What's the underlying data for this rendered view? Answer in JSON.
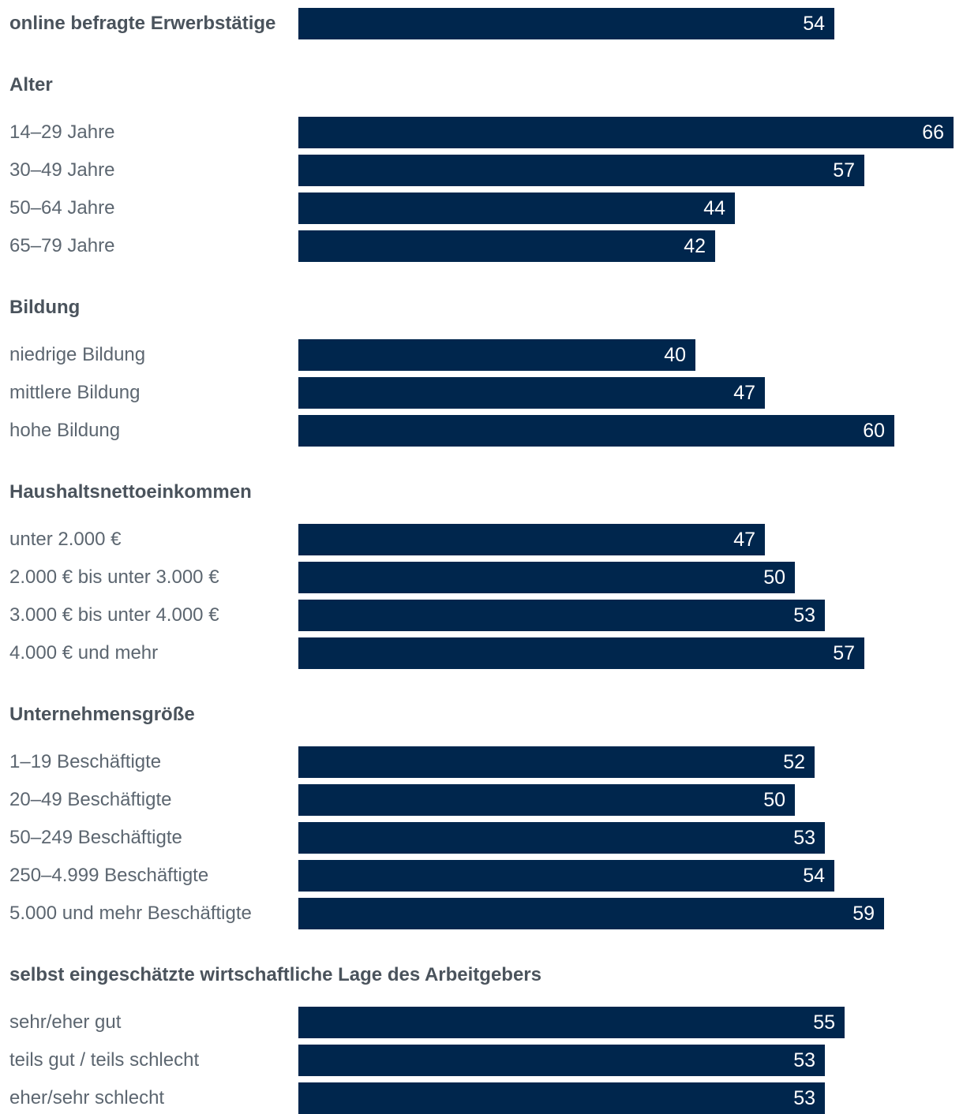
{
  "chart_data": {
    "type": "bar",
    "orientation": "horizontal",
    "colors": {
      "bar": "#00264d",
      "label": "#5c6670",
      "value_text": "#ffffff"
    },
    "xlim": [
      0,
      66
    ],
    "groups": [
      {
        "title": "",
        "items": [
          {
            "label": "online befragte Erwerbstätige",
            "value": 54
          }
        ]
      },
      {
        "title": "Alter",
        "items": [
          {
            "label": "14–29 Jahre",
            "value": 66
          },
          {
            "label": "30–49 Jahre",
            "value": 57
          },
          {
            "label": "50–64 Jahre",
            "value": 44
          },
          {
            "label": "65–79 Jahre",
            "value": 42
          }
        ]
      },
      {
        "title": "Bildung",
        "items": [
          {
            "label": "niedrige Bildung",
            "value": 40
          },
          {
            "label": "mittlere Bildung",
            "value": 47
          },
          {
            "label": "hohe Bildung",
            "value": 60
          }
        ]
      },
      {
        "title": "Haushaltsnettoeinkommen",
        "items": [
          {
            "label": "unter 2.000 €",
            "value": 47
          },
          {
            "label": "2.000 € bis unter 3.000 €",
            "value": 50
          },
          {
            "label": "3.000 € bis unter 4.000 €",
            "value": 53
          },
          {
            "label": "4.000 € und mehr",
            "value": 57
          }
        ]
      },
      {
        "title": "Unternehmensgröße",
        "items": [
          {
            "label": "1–19 Beschäftigte",
            "value": 52
          },
          {
            "label": "20–49 Beschäftigte",
            "value": 50
          },
          {
            "label": "50–249 Beschäftigte",
            "value": 53
          },
          {
            "label": "250–4.999 Beschäftigte",
            "value": 54
          },
          {
            "label": "5.000 und mehr Beschäftigte",
            "value": 59
          }
        ]
      },
      {
        "title": "selbst eingeschätzte wirtschaftliche Lage des Arbeitgebers",
        "items": [
          {
            "label": "sehr/eher gut",
            "value": 55
          },
          {
            "label": "teils gut / teils schlecht",
            "value": 53
          },
          {
            "label": "eher/sehr schlecht",
            "value": 53
          }
        ]
      }
    ]
  }
}
